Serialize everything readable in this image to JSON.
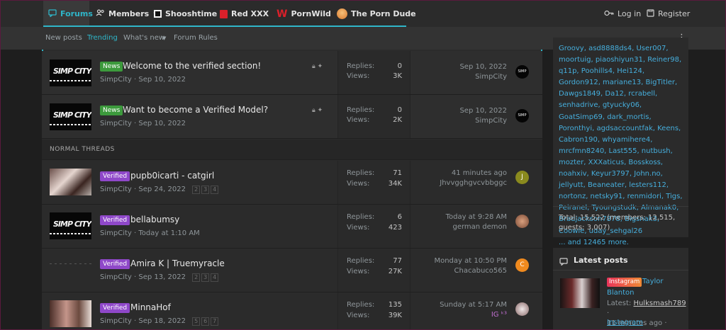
{
  "topnav": {
    "tabs": [
      {
        "label": "Forums",
        "icon": "chat-icon"
      },
      {
        "label": "Members",
        "icon": "users-icon"
      },
      {
        "label": "Shooshtime",
        "icon": "shooshtime-logo-icon"
      },
      {
        "label": "Red XXX",
        "icon": "red-xxx-logo-icon"
      },
      {
        "label": "PornWild",
        "icon": "pornwild-logo-icon"
      },
      {
        "label": "The Porn Dude",
        "icon": "porndude-logo-icon"
      }
    ],
    "login": "Log in",
    "register": "Register"
  },
  "subnav": {
    "items": [
      "New posts",
      "Trending",
      "What's new",
      "Forum Rules"
    ]
  },
  "sticky_threads": [
    {
      "badge": "News",
      "title": "Welcome to the verified section!",
      "author": "SimpCity",
      "date": "Sep 10, 2022",
      "replies": "0",
      "views": "3K",
      "last_date": "Sep 10, 2022",
      "last_user": "SimpCity"
    },
    {
      "badge": "News",
      "title": "Want to become a Verified Model?",
      "author": "SimpCity",
      "date": "Sep 10, 2022",
      "replies": "0",
      "views": "2K",
      "last_date": "Sep 10, 2022",
      "last_user": "SimpCity"
    }
  ],
  "section_label": "NORMAL THREADS",
  "threads": [
    {
      "badge": "Verified",
      "title": "pupb0icarti - catgirl",
      "author": "SimpCity",
      "date": "Sep 24, 2022",
      "pages": [
        "2",
        "3",
        "4"
      ],
      "replies": "71",
      "views": "34K",
      "last_date": "41 minutes ago",
      "last_user": "Jhvvgghgvcvbbggc",
      "avatar_letter": "J"
    },
    {
      "badge": "Verified",
      "title": "bellabumsy",
      "author": "SimpCity",
      "date": "Today at 1:10 AM",
      "pages": [],
      "replies": "6",
      "views": "423",
      "last_date": "Today at 9:28 AM",
      "last_user": "german demon",
      "avatar_letter": ""
    },
    {
      "badge": "Verified",
      "title": "Amira K | Truemyracle",
      "author": "SimpCity",
      "date": "Sep 13, 2022",
      "pages": [
        "2",
        "3",
        "4"
      ],
      "replies": "77",
      "views": "27K",
      "last_date": "Monday at 10:50 PM",
      "last_user": "Chacabuco565",
      "avatar_letter": "C"
    },
    {
      "badge": "Verified",
      "title": "MinnaHof",
      "author": "SimpCity",
      "date": "Sep 18, 2022",
      "pages": [
        "5",
        "6",
        "7"
      ],
      "replies": "135",
      "views": "39K",
      "last_date": "Sunday at 5:17 AM",
      "last_user": "IG ᵏ³",
      "avatar_letter": ""
    }
  ],
  "stat_labels": {
    "replies": "Replies:",
    "views": "Views:"
  },
  "online": {
    "users": "Groovy, asd8888ds4, User007, moortuig, piaoshiyun31, Reiner98, q11p, Poohills4, Hei124, Gordon912, mariane13, BigTitler, Dawgs1849, Da12, rcrabell, senhadrive, gtyucky06, GoatSimp69, dark_mortis, Poronthyi, agdsaccountfak, Keens, Cabron190, whyamihere4, mrcfmn8240, Last555, nutbush, mozter, XXXaticus, Bosskoss, noahxiv, Keyur3797, John.no, jellyutt, Beaneater, lesters112, nortonz, netsky91, renmidori, Tigs, Peiranel, Tyoungstudk, Almanak0, Bradjackson7878, Bigsnak3, Coowie, uday_sehgal26",
    "more": "... and 12465 more.",
    "total": "Total: 15,522 (members: 12,515, guests: 3,007)"
  },
  "latest_posts": {
    "title": "Latest posts",
    "item": {
      "badge": "Instagram",
      "title_part1": "Taylor",
      "title_part2": "Blanton",
      "latest_prefix": "Latest: ",
      "latest_user": "Hulksmash789",
      "time": "11 minutes ago",
      "category": "Instagram"
    }
  },
  "colors": {
    "accent": "#2fb6c9",
    "verified": "#8f48c9",
    "news": "#3c9a3c",
    "link": "#46aedc"
  }
}
